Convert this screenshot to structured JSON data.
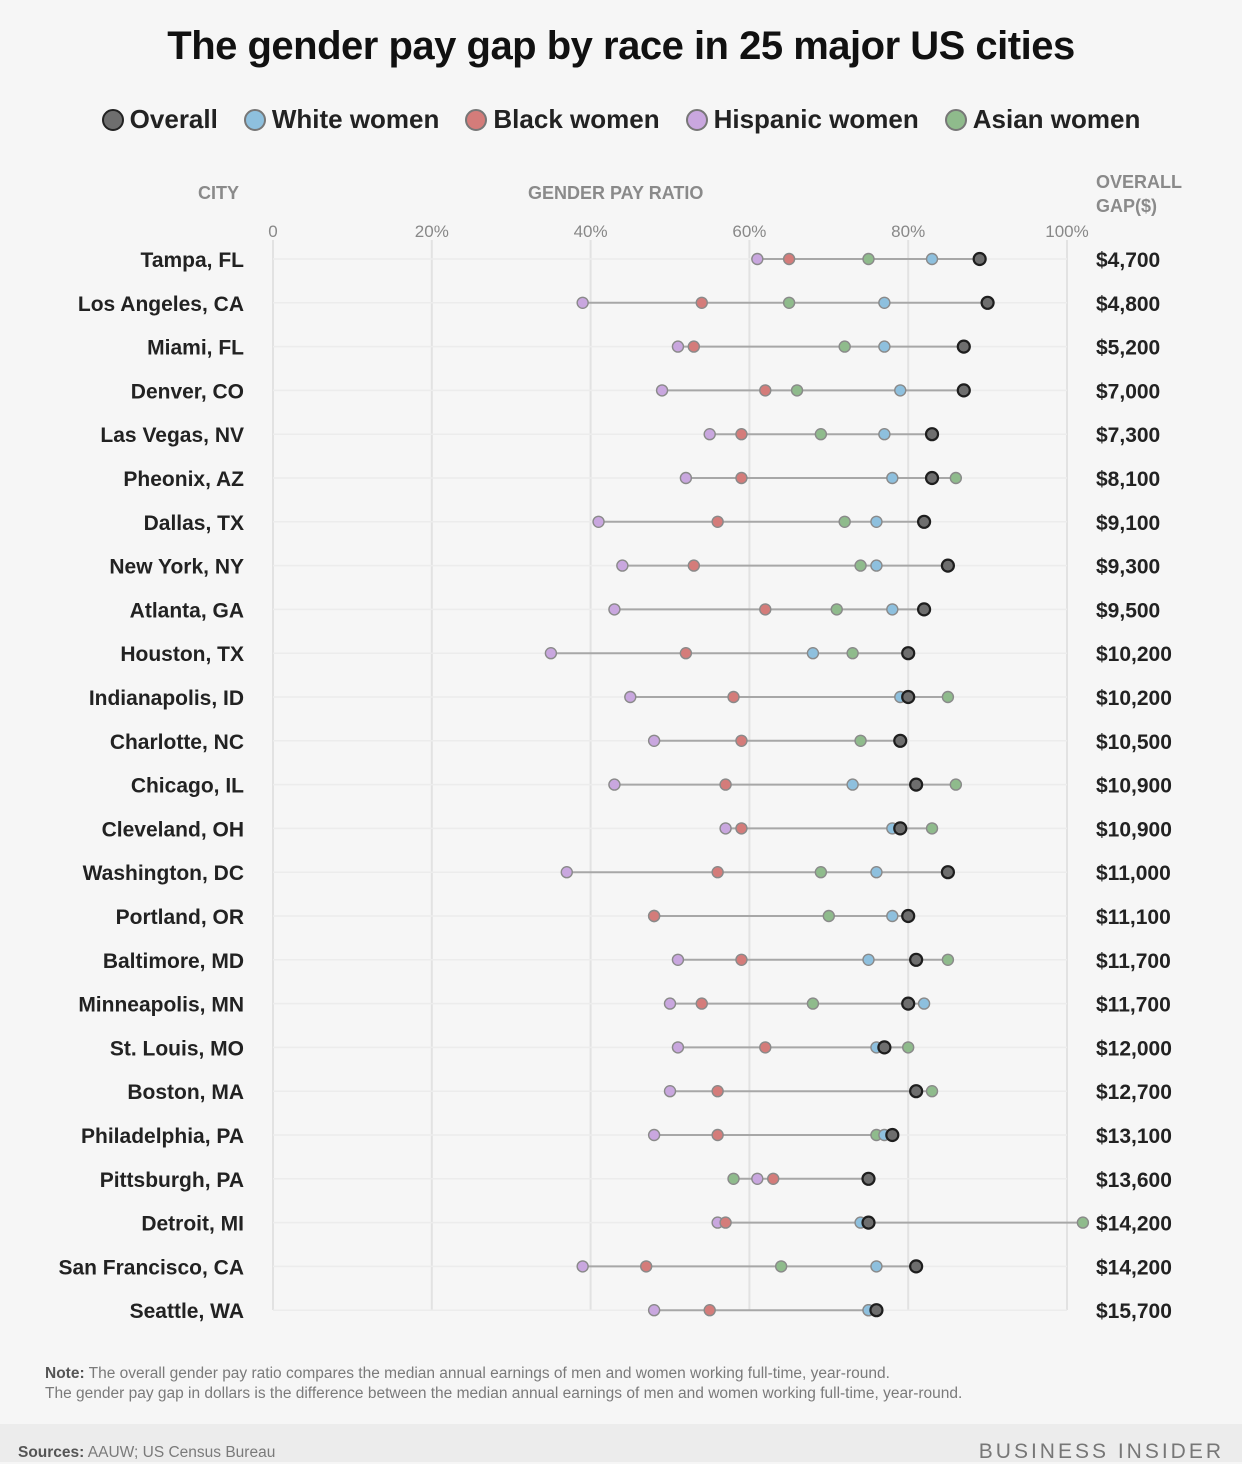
{
  "chart_data": {
    "type": "scatter",
    "title": "The gender pay gap by race in 25 major US cities",
    "legend_position": "top",
    "city_header": "CITY",
    "xlabel": "GENDER PAY RATIO",
    "gap_header_line1": "OVERALL",
    "gap_header_line2": "GAP($)",
    "x_ticks": [
      "0",
      "20%",
      "40%",
      "60%",
      "80%",
      "100%"
    ],
    "xlim": [
      0,
      100
    ],
    "grid": true,
    "series": [
      {
        "name": "Overall",
        "color": "#6e6e6e"
      },
      {
        "name": "White women",
        "color": "#8ec0de"
      },
      {
        "name": "Black women",
        "color": "#d47c7a"
      },
      {
        "name": "Hispanic women",
        "color": "#c9a7df"
      },
      {
        "name": "Asian women",
        "color": "#8fbb8c"
      }
    ],
    "rows": [
      {
        "city": "Tampa, FL",
        "gap": "$4,700",
        "overall": 89,
        "white": 83,
        "black": 65,
        "hispanic": 61,
        "asian": 75
      },
      {
        "city": "Los Angeles, CA",
        "gap": "$4,800",
        "overall": 90,
        "white": 77,
        "black": 54,
        "hispanic": 39,
        "asian": 65
      },
      {
        "city": "Miami, FL",
        "gap": "$5,200",
        "overall": 87,
        "white": 77,
        "black": 53,
        "hispanic": 51,
        "asian": 72
      },
      {
        "city": "Denver, CO",
        "gap": "$7,000",
        "overall": 87,
        "white": 79,
        "black": 62,
        "hispanic": 49,
        "asian": 66
      },
      {
        "city": "Las Vegas, NV",
        "gap": "$7,300",
        "overall": 83,
        "white": 77,
        "black": 59,
        "hispanic": 55,
        "asian": 69
      },
      {
        "city": "Pheonix, AZ",
        "gap": "$8,100",
        "overall": 83,
        "white": 78,
        "black": 59,
        "hispanic": 52,
        "asian": 86
      },
      {
        "city": "Dallas, TX",
        "gap": "$9,100",
        "overall": 82,
        "white": 76,
        "black": 56,
        "hispanic": 41,
        "asian": 72
      },
      {
        "city": "New York, NY",
        "gap": "$9,300",
        "overall": 85,
        "white": 76,
        "black": 53,
        "hispanic": 44,
        "asian": 74
      },
      {
        "city": "Atlanta, GA",
        "gap": "$9,500",
        "overall": 82,
        "white": 78,
        "black": 62,
        "hispanic": 43,
        "asian": 71
      },
      {
        "city": "Houston, TX",
        "gap": "$10,200",
        "overall": 80,
        "white": 68,
        "black": 52,
        "hispanic": 35,
        "asian": 73
      },
      {
        "city": "Indianapolis, ID",
        "gap": "$10,200",
        "overall": 80,
        "white": 79,
        "black": 58,
        "hispanic": 45,
        "asian": 85
      },
      {
        "city": "Charlotte, NC",
        "gap": "$10,500",
        "overall": 79,
        "white": 79,
        "black": 59,
        "hispanic": 48,
        "asian": 74
      },
      {
        "city": "Chicago, IL",
        "gap": "$10,900",
        "overall": 81,
        "white": 73,
        "black": 57,
        "hispanic": 43,
        "asian": 86
      },
      {
        "city": "Cleveland, OH",
        "gap": "$10,900",
        "overall": 79,
        "white": 78,
        "black": 59,
        "hispanic": 57,
        "asian": 83
      },
      {
        "city": "Washington, DC",
        "gap": "$11,000",
        "overall": 85,
        "white": 76,
        "black": 56,
        "hispanic": 37,
        "asian": 69
      },
      {
        "city": "Portland, OR",
        "gap": "$11,100",
        "overall": 80,
        "white": 78,
        "black": 48,
        "hispanic": 48,
        "asian": 70
      },
      {
        "city": "Baltimore, MD",
        "gap": "$11,700",
        "overall": 81,
        "white": 75,
        "black": 59,
        "hispanic": 51,
        "asian": 85
      },
      {
        "city": "Minneapolis, MN",
        "gap": "$11,700",
        "overall": 80,
        "white": 82,
        "black": 54,
        "hispanic": 50,
        "asian": 68
      },
      {
        "city": "St. Louis, MO",
        "gap": "$12,000",
        "overall": 77,
        "white": 76,
        "black": 62,
        "hispanic": 51,
        "asian": 80
      },
      {
        "city": "Boston, MA",
        "gap": "$12,700",
        "overall": 81,
        "white": 81,
        "black": 56,
        "hispanic": 50,
        "asian": 83
      },
      {
        "city": "Philadelphia, PA",
        "gap": "$13,100",
        "overall": 78,
        "white": 77,
        "black": 56,
        "hispanic": 48,
        "asian": 76
      },
      {
        "city": "Pittsburgh, PA",
        "gap": "$13,600",
        "overall": 75,
        "white": 75,
        "black": 63,
        "hispanic": 61,
        "asian": 58
      },
      {
        "city": "Detroit, MI",
        "gap": "$14,200",
        "overall": 75,
        "white": 74,
        "black": 57,
        "hispanic": 56,
        "asian": 102
      },
      {
        "city": "San Francisco, CA",
        "gap": "$14,200",
        "overall": 81,
        "white": 76,
        "black": 47,
        "hispanic": 39,
        "asian": 64
      },
      {
        "city": "Seattle, WA",
        "gap": "$15,700",
        "overall": 76,
        "white": 75,
        "black": 55,
        "hispanic": 48,
        "asian": 75
      }
    ]
  },
  "note": {
    "label": "Note:",
    "line1": "The overall gender pay ratio compares the median annual earnings of men and women working full-time, year-round.",
    "line2": "The gender pay gap in dollars is the difference between the median annual earnings of men and women working full-time, year-round."
  },
  "footer": {
    "sources_label": "Sources:",
    "sources_text": "AAUW; US Census Bureau",
    "brand": "BUSINESS INSIDER"
  }
}
